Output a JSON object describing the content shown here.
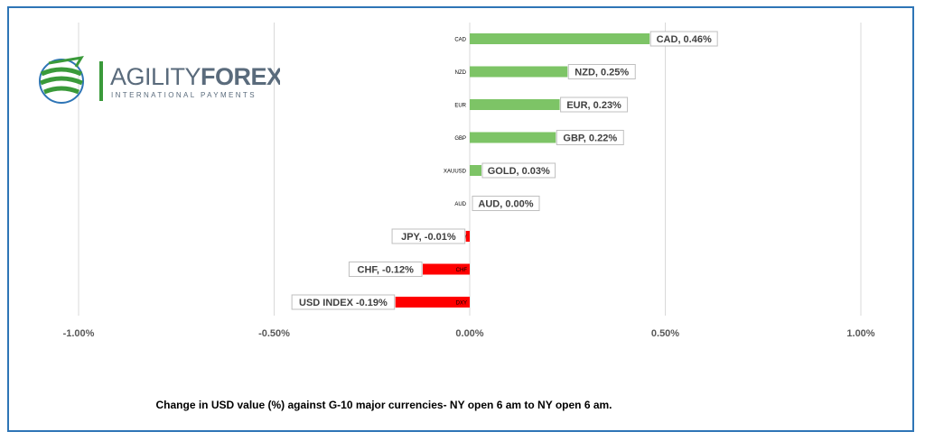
{
  "logo": {
    "name_part1": "AGILITY",
    "name_part2": "FOREX",
    "tagline": "INTERNATIONAL PAYMENTS",
    "colors": {
      "text": "#5a6b7c",
      "accent": "#3a9a3a",
      "globe": "#2e75b6"
    }
  },
  "caption": "Change in  USD value (%)  against  G-10 major currencies- NY open 6 am to NY open 6 am.",
  "colors": {
    "positive": "#7dc466",
    "negative": "#ff0000",
    "frame": "#2e75b6",
    "grid": "#d9d9d9"
  },
  "chart_data": {
    "type": "bar",
    "orientation": "horizontal",
    "xlim": [
      -1.0,
      1.0
    ],
    "x_ticks": [
      {
        "value": -1.0,
        "label": "-1.00%"
      },
      {
        "value": -0.5,
        "label": "-0.50%"
      },
      {
        "value": 0.0,
        "label": "0.00%"
      },
      {
        "value": 0.5,
        "label": "0.50%"
      },
      {
        "value": 1.0,
        "label": "1.00%"
      }
    ],
    "grid": true,
    "bars": [
      {
        "category": "CAD",
        "value": 0.46,
        "label": "CAD, 0.46%"
      },
      {
        "category": "NZD",
        "value": 0.25,
        "label": "NZD, 0.25%"
      },
      {
        "category": "EUR",
        "value": 0.23,
        "label": "EUR, 0.23%"
      },
      {
        "category": "GBP",
        "value": 0.22,
        "label": "GBP, 0.22%"
      },
      {
        "category": "XAUUSD",
        "value": 0.03,
        "label": "GOLD, 0.03%"
      },
      {
        "category": "AUD",
        "value": 0.0,
        "label": "AUD, 0.00%"
      },
      {
        "category": "JPY",
        "value": -0.01,
        "label": "JPY, -0.01%"
      },
      {
        "category": "CHF",
        "value": -0.12,
        "label": "CHF, -0.12%"
      },
      {
        "category": "DXY",
        "value": -0.19,
        "label": "USD INDEX -0.19%"
      }
    ]
  }
}
